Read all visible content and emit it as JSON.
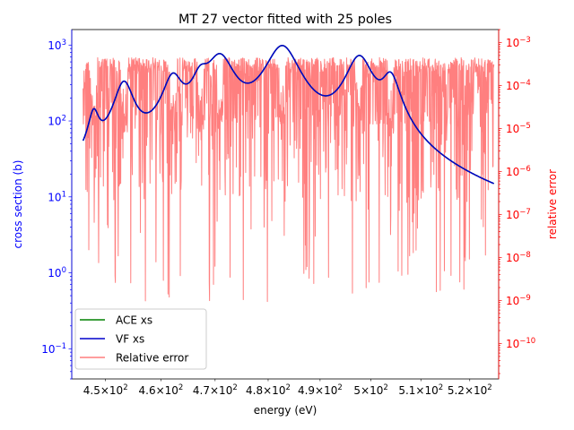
{
  "chart_data": {
    "type": "line",
    "title": "MT 27 vector fitted with 25 poles",
    "xlabel": "energy (eV)",
    "ylabel_left": "cross section (b)",
    "ylabel_right": "relative error",
    "x_scale": "log",
    "y_left_scale": "log",
    "y_right_scale": "log",
    "xlim": [
      444,
      526
    ],
    "ylim_left": [
      0.04,
      1600
    ],
    "ylim_right": [
      1.5e-11,
      0.002
    ],
    "x_tick_labels": [
      {
        "value": 450,
        "mantissa": "4.5",
        "exp": "2"
      },
      {
        "value": 460,
        "mantissa": "4.6",
        "exp": "2"
      },
      {
        "value": 470,
        "mantissa": "4.7",
        "exp": "2"
      },
      {
        "value": 480,
        "mantissa": "4.8",
        "exp": "2"
      },
      {
        "value": 490,
        "mantissa": "4.9",
        "exp": "2"
      },
      {
        "value": 500,
        "mantissa": "5",
        "exp": "2"
      },
      {
        "value": 510,
        "mantissa": "5.1",
        "exp": "2"
      },
      {
        "value": 520,
        "mantissa": "5.2",
        "exp": "2"
      }
    ],
    "y_left_tick_labels": [
      {
        "value": 0.1,
        "base": "10",
        "exp": "−1"
      },
      {
        "value": 1,
        "base": "10",
        "exp": "0"
      },
      {
        "value": 10,
        "base": "10",
        "exp": "1"
      },
      {
        "value": 100,
        "base": "10",
        "exp": "2"
      },
      {
        "value": 1000,
        "base": "10",
        "exp": "3"
      }
    ],
    "y_right_tick_labels": [
      {
        "value": 1e-10,
        "base": "10",
        "exp": "−10"
      },
      {
        "value": 1e-09,
        "base": "10",
        "exp": "−9"
      },
      {
        "value": 1e-08,
        "base": "10",
        "exp": "−8"
      },
      {
        "value": 1e-07,
        "base": "10",
        "exp": "−7"
      },
      {
        "value": 1e-06,
        "base": "10",
        "exp": "−6"
      },
      {
        "value": 1e-05,
        "base": "10",
        "exp": "−5"
      },
      {
        "value": 0.0001,
        "base": "10",
        "exp": "−4"
      },
      {
        "value": 0.001,
        "base": "10",
        "exp": "−3"
      }
    ],
    "x_range": [
      446,
      525
    ],
    "resonances": [
      {
        "e0": 447.9,
        "peak": 95
      },
      {
        "e0": 453.3,
        "peak": 290
      },
      {
        "e0": 462.2,
        "peak": 320
      },
      {
        "e0": 467.3,
        "peak": 250
      },
      {
        "e0": 470.9,
        "peak": 650
      },
      {
        "e0": 482.7,
        "peak": 930
      },
      {
        "e0": 497.7,
        "peak": 660
      },
      {
        "e0": 503.9,
        "peak": 320
      }
    ],
    "series": [
      {
        "name": "ACE xs",
        "color": "#008000",
        "axis": "left"
      },
      {
        "name": "VF xs",
        "color": "#0000cc",
        "axis": "left"
      },
      {
        "name": "Relative error",
        "color": "#ff7f7f",
        "axis": "right"
      }
    ],
    "legend_position": "lower-left",
    "colors": {
      "left_axis": "#0000ff",
      "right_axis": "#ff0000"
    }
  }
}
